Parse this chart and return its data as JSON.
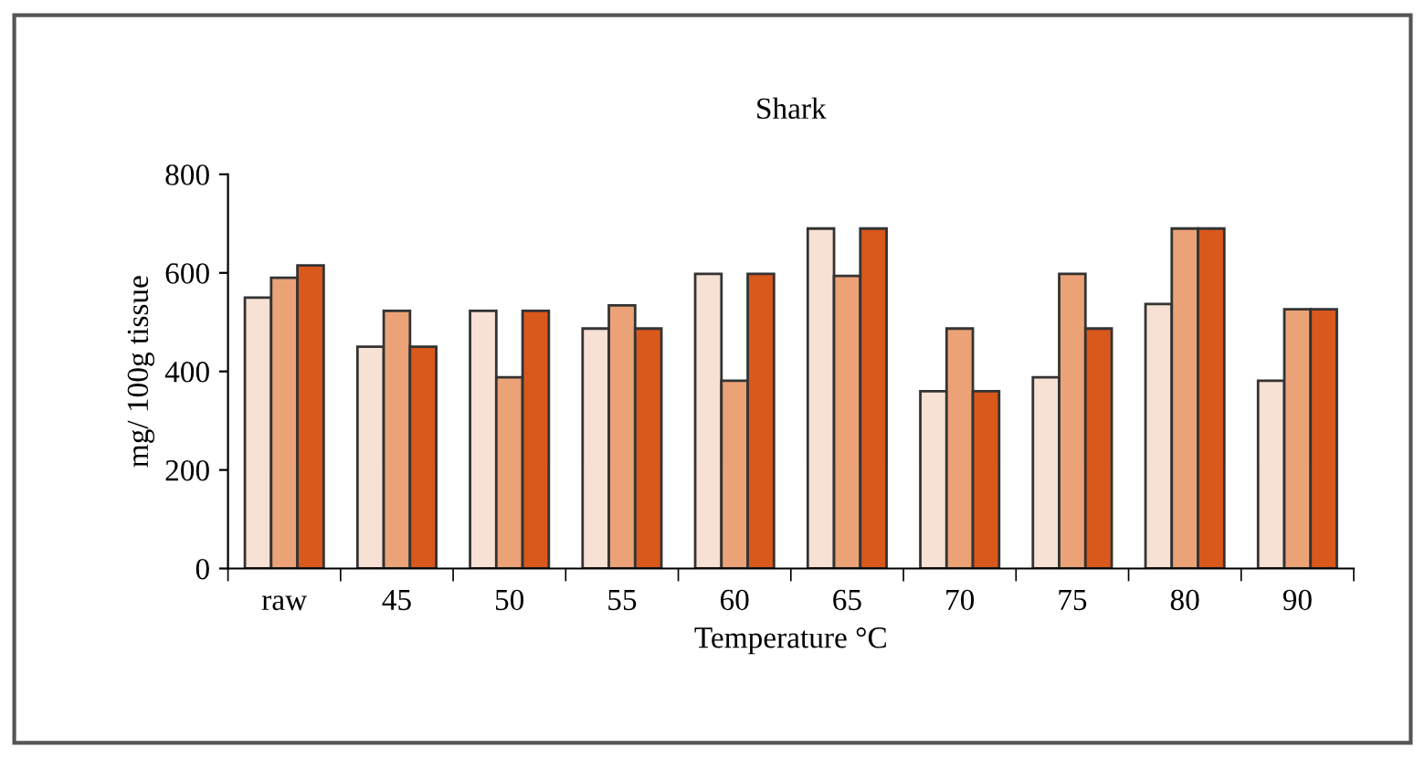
{
  "chart_data": {
    "type": "bar",
    "title": "Shark",
    "xlabel": "Temperature °C",
    "ylabel": "mg/ 100g tissue",
    "categories": [
      "raw",
      "45",
      "50",
      "55",
      "60",
      "65",
      "70",
      "75",
      "80",
      "90"
    ],
    "series": [
      {
        "color": "#f7e0d4",
        "values": [
          550,
          450,
          523,
          487,
          598,
          690,
          360,
          388,
          537,
          381
        ]
      },
      {
        "color": "#eba277",
        "values": [
          590,
          523,
          388,
          534,
          381,
          594,
          487,
          598,
          690,
          526
        ]
      },
      {
        "color": "#d9581c",
        "values": [
          615,
          450,
          523,
          487,
          598,
          690,
          360,
          487,
          690,
          526
        ]
      }
    ],
    "ylim": [
      0,
      800
    ],
    "yticks": [
      0,
      200,
      400,
      600,
      800
    ],
    "grid": false,
    "legend": false
  }
}
